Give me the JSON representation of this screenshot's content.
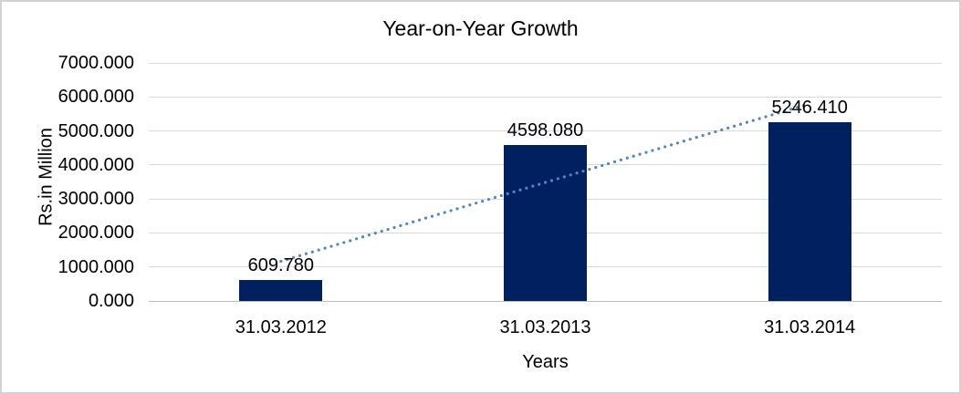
{
  "figure": {
    "title": "Year-on-Year Growth"
  },
  "chart_data": {
    "type": "bar",
    "title": "Year-on-Year Growth",
    "xlabel": "Years",
    "ylabel": "Rs.in Million",
    "categories": [
      "31.03.2012",
      "31.03.2013",
      "31.03.2014"
    ],
    "values": [
      609.78,
      4598.08,
      5246.41
    ],
    "data_labels": [
      "609.780",
      "4598.080",
      "5246.410"
    ],
    "ylim": [
      0,
      7000
    ],
    "y_tick_step": 1000,
    "y_tick_labels": [
      "0.000",
      "1000.000",
      "2000.000",
      "3000.000",
      "4000.000",
      "5000.000",
      "6000.000",
      "7000.000"
    ],
    "grid": true,
    "legend": "none",
    "bar_color": "#002060",
    "gridline_color": "#d9d9d9",
    "baseline_color": "#bfbfbf",
    "trendline": {
      "type": "linear",
      "style": "dotted",
      "color": "#4e87c7"
    }
  }
}
